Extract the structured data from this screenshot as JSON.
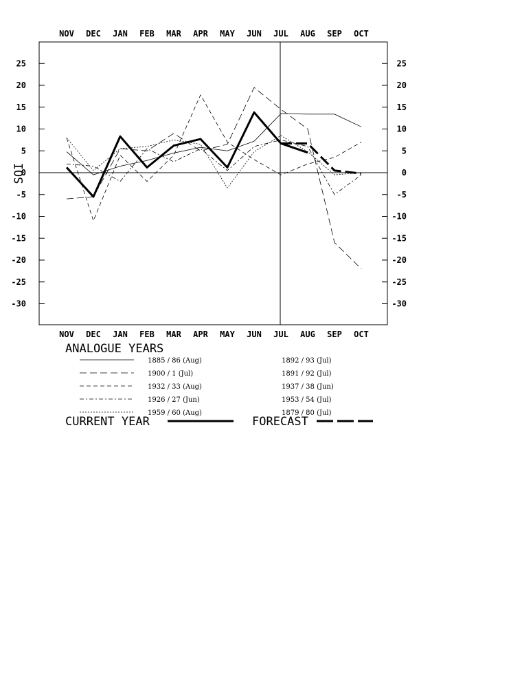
{
  "chart_data": {
    "type": "line",
    "categories": [
      "NOV",
      "DEC",
      "JAN",
      "FEB",
      "MAR",
      "APR",
      "MAY",
      "JUN",
      "JUL",
      "AUG",
      "SEP",
      "OCT"
    ],
    "ylabel": "SOI",
    "ylim": [
      -35,
      30
    ],
    "yticks": [
      "25",
      "20",
      "15",
      "10",
      "5",
      "0",
      "-5",
      "-10",
      "-15",
      "-20",
      "-25",
      "-30"
    ],
    "series": [
      {
        "name": "CURRENT YEAR",
        "style": "thick-solid",
        "values": [
          1.2,
          -5.5,
          8.3,
          1.2,
          6.2,
          7.7,
          1.2,
          13.8,
          6.7,
          4.6,
          null,
          null
        ]
      },
      {
        "name": "FORECAST",
        "style": "thick-dashed",
        "values": [
          null,
          null,
          null,
          null,
          null,
          null,
          null,
          null,
          6.7,
          6.7,
          0.5,
          -0.2
        ]
      },
      {
        "name": "1885 / 86 (Aug)",
        "style": "solid",
        "values": [
          4.8,
          -0.5,
          1.5,
          2.8,
          4.5,
          5.8,
          5.0,
          7.2,
          13.5,
          13.4,
          13.4,
          10.5
        ]
      },
      {
        "name": "1900 /  1 (Jul)",
        "style": "longdash",
        "values": [
          -6.0,
          -5.5,
          5.5,
          5.0,
          9.0,
          5.0,
          6.5,
          19.5,
          14.5,
          10.0,
          -16.0,
          -22.0
        ]
      },
      {
        "name": "1932 / 33 (Aug)",
        "style": "mediumdash",
        "values": [
          8.0,
          -11.0,
          4.0,
          -2.0,
          4.0,
          17.8,
          7.0,
          3.0,
          -0.5,
          2.0,
          3.5,
          7.0
        ]
      },
      {
        "name": "1926 / 27 (Jun)",
        "style": "dashdot",
        "values": [
          2.0,
          1.5,
          -2.0,
          5.5,
          2.5,
          5.5,
          0.5,
          6.0,
          7.5,
          6.0,
          -5.0,
          -0.5
        ]
      },
      {
        "name": "1959 / 60 (Aug)",
        "style": "dotted",
        "values": [
          8.0,
          0.5,
          5.5,
          6.0,
          7.5,
          6.5,
          -3.5,
          4.8,
          8.5,
          4.8,
          -0.5,
          0.0
        ]
      }
    ],
    "legend": {
      "title": "ANALOGUE YEARS",
      "paired": [
        "1892 / 93 (Jul)",
        "1891 / 92 (Jul)",
        "1937 / 38 (Jun)",
        "1953 / 54 (Jul)",
        "1879 / 80 (Jul)"
      ],
      "current_label": "CURRENT YEAR",
      "forecast_label": "FORECAST"
    }
  }
}
